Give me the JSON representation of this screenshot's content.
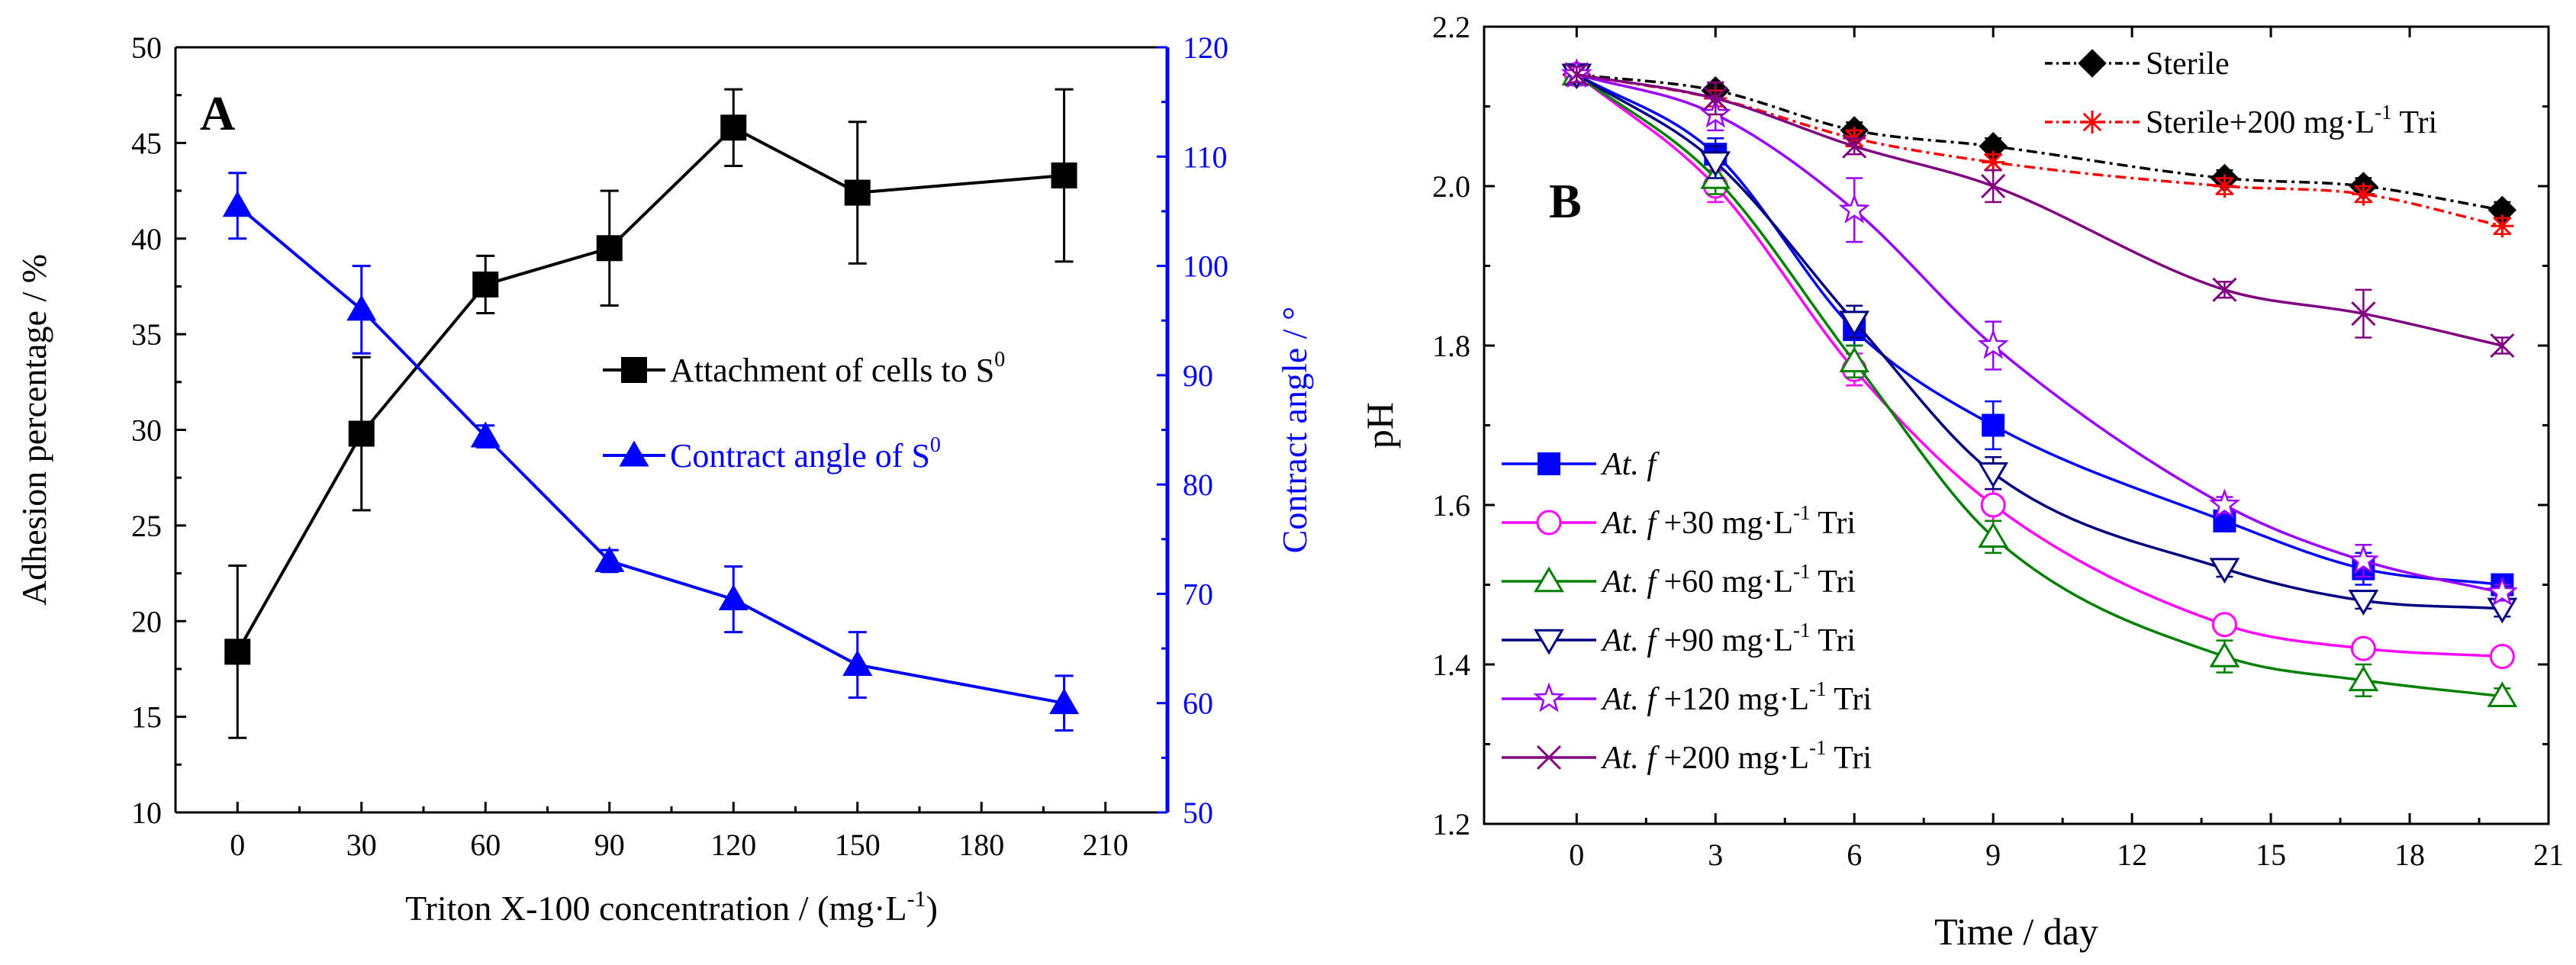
{
  "colors": {
    "black": "#000000",
    "blue": "#0000ff",
    "red": "#ff0000",
    "magenta": "#ff00ff",
    "green": "#008000",
    "navy": "#000080",
    "purple": "#9900ff",
    "plum": "#800080"
  },
  "chart_data": [
    {
      "type": "line",
      "panel_label": "A",
      "xlabel": "Triton X-100 concentration / (mg·L",
      "xlabel_sup": "-1",
      "xlabel_end": ")",
      "ylabel": "Adhesion percentage / %",
      "y2label": "Contract angle / °",
      "xlim": [
        -15,
        225
      ],
      "xticks": [
        0,
        30,
        60,
        90,
        120,
        150,
        180,
        210
      ],
      "ylim": [
        10,
        50
      ],
      "yticks": [
        10,
        15,
        20,
        25,
        30,
        35,
        40,
        45,
        50
      ],
      "y2lim": [
        50,
        120
      ],
      "y2ticks": [
        50,
        60,
        70,
        80,
        90,
        100,
        110,
        120
      ],
      "legend_position": "center-right",
      "series": [
        {
          "name": "Attachment of cells to S",
          "name_sup": "0",
          "axis": "left",
          "color": "#000000",
          "marker": "square",
          "x": [
            0,
            30,
            60,
            90,
            120,
            150,
            200
          ],
          "values": [
            18.4,
            29.8,
            37.6,
            39.5,
            45.8,
            42.4,
            43.3
          ],
          "errors": [
            4.5,
            4.0,
            1.5,
            3.0,
            2.0,
            3.7,
            4.5
          ]
        },
        {
          "name": "Contract angle of S",
          "name_sup": "0",
          "axis": "right",
          "color": "#0000ff",
          "marker": "triangle",
          "x": [
            0,
            30,
            60,
            90,
            120,
            150,
            200
          ],
          "values": [
            105.5,
            96.0,
            84.4,
            73.0,
            69.5,
            63.5,
            60.0
          ],
          "errors": [
            3.0,
            4.0,
            1.0,
            1.0,
            3.0,
            3.0,
            2.5
          ]
        }
      ]
    },
    {
      "type": "line",
      "panel_label": "B",
      "xlabel": "Time / day",
      "ylabel": "pH",
      "xlim": [
        -2,
        21
      ],
      "xticks": [
        0,
        3,
        6,
        9,
        12,
        15,
        18,
        21
      ],
      "ylim": [
        1.2,
        2.2
      ],
      "yticks": [
        1.2,
        1.4,
        1.6,
        1.8,
        2.0,
        2.2
      ],
      "x": [
        0,
        3,
        6,
        9,
        14,
        17,
        20
      ],
      "legends": {
        "top-right": [
          "Sterile",
          "Sterile+200"
        ],
        "bottom-left": [
          "At.f",
          "At.f+30",
          "At.f+60",
          "At.f+90",
          "At.f+120",
          "At.f+200"
        ]
      },
      "series": [
        {
          "id": "Sterile",
          "name": "Sterile",
          "name_italic": "",
          "name_rest": "",
          "name_sup": "",
          "name_end": "",
          "color": "#000000",
          "marker": "diamond",
          "dash": "14,6,4,6",
          "values": [
            2.14,
            2.12,
            2.07,
            2.05,
            2.01,
            2.0,
            1.97
          ],
          "errors": [
            0.01,
            0.01,
            0.01,
            0.01,
            0.01,
            0.01,
            0.01
          ]
        },
        {
          "id": "Sterile+200",
          "name": "Sterile+200 mg·L",
          "name_italic": "",
          "name_rest": "",
          "name_sup": "-1",
          "name_end": " Tri",
          "color": "#ff0000",
          "marker": "asterisk",
          "dash": "14,6,4,6",
          "values": [
            2.14,
            2.11,
            2.06,
            2.03,
            2.0,
            1.99,
            1.95
          ],
          "errors": [
            0.01,
            0.01,
            0.01,
            0.01,
            0.01,
            0.01,
            0.01
          ]
        },
        {
          "id": "At.f",
          "name": "",
          "name_italic": "At. f",
          "name_rest": "",
          "name_sup": "",
          "name_end": "",
          "color": "#0000ff",
          "marker": "square",
          "dash": "",
          "values": [
            2.14,
            2.04,
            1.82,
            1.7,
            1.58,
            1.52,
            1.5
          ],
          "errors": [
            0.01,
            0.02,
            0.02,
            0.03,
            0.01,
            0.02,
            0.01
          ]
        },
        {
          "id": "At.f+30",
          "name": "",
          "name_italic": "At. f",
          "name_rest": " +30 mg·L",
          "name_sup": "-1",
          "name_end": " Tri",
          "color": "#ff00ff",
          "marker": "circle",
          "dash": "",
          "values": [
            2.14,
            2.0,
            1.77,
            1.6,
            1.45,
            1.42,
            1.41
          ],
          "errors": [
            0.01,
            0.02,
            0.02,
            0.02,
            0.01,
            0.01,
            0.01
          ]
        },
        {
          "id": "At.f+60",
          "name": "",
          "name_italic": "At. f",
          "name_rest": " +60 mg·L",
          "name_sup": "-1",
          "name_end": " Tri",
          "color": "#008000",
          "marker": "triangle",
          "dash": "",
          "values": [
            2.14,
            2.01,
            1.78,
            1.56,
            1.41,
            1.38,
            1.36
          ],
          "errors": [
            0.01,
            0.02,
            0.02,
            0.02,
            0.02,
            0.02,
            0.01
          ]
        },
        {
          "id": "At.f+90",
          "name": "",
          "name_italic": "At. f",
          "name_rest": " +90 mg·L",
          "name_sup": "-1",
          "name_end": " Tri",
          "color": "#000080",
          "marker": "triangle-down",
          "dash": "",
          "values": [
            2.14,
            2.03,
            1.83,
            1.64,
            1.52,
            1.48,
            1.47
          ],
          "errors": [
            0.01,
            0.02,
            0.02,
            0.02,
            0.01,
            0.01,
            0.01
          ]
        },
        {
          "id": "At.f+120",
          "name": "",
          "name_italic": "At. f",
          "name_rest": " +120 mg·L",
          "name_sup": "-1",
          "name_end": " Tri",
          "color": "#9900ff",
          "marker": "star",
          "dash": "",
          "values": [
            2.14,
            2.09,
            1.97,
            1.8,
            1.6,
            1.53,
            1.49
          ],
          "errors": [
            0.01,
            0.02,
            0.04,
            0.03,
            0.01,
            0.02,
            0.01
          ]
        },
        {
          "id": "At.f+200",
          "name": "",
          "name_italic": "At. f",
          "name_rest": " +200 mg·L",
          "name_sup": "-1",
          "name_end": " Tri",
          "color": "#800080",
          "marker": "x",
          "dash": "",
          "values": [
            2.14,
            2.11,
            2.05,
            2.0,
            1.87,
            1.84,
            1.8
          ],
          "errors": [
            0.01,
            0.02,
            0.01,
            0.02,
            0.01,
            0.03,
            0.01
          ]
        }
      ]
    }
  ]
}
